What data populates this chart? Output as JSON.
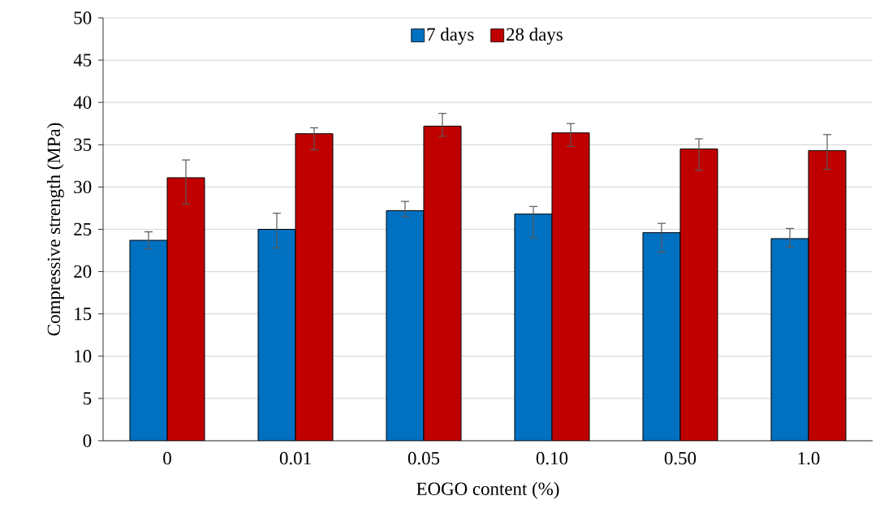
{
  "chart_data": {
    "type": "bar",
    "xlabel": "EOGO content (%)",
    "ylabel": "Compressive strength (MPa)",
    "categories": [
      "0",
      "0.01",
      "0.05",
      "0.10",
      "0.50",
      "1.0"
    ],
    "series": [
      {
        "name": "7 days",
        "color": "#0070c0",
        "values": [
          23.7,
          25.0,
          27.2,
          26.8,
          24.6,
          23.9
        ],
        "errors": [
          [
            22.7,
            24.7
          ],
          [
            22.8,
            26.9
          ],
          [
            26.5,
            28.3
          ],
          [
            24.0,
            27.7
          ],
          [
            22.3,
            25.7
          ],
          [
            22.9,
            25.1
          ]
        ]
      },
      {
        "name": "28 days",
        "color": "#c00000",
        "values": [
          31.1,
          36.3,
          37.2,
          36.4,
          34.5,
          34.3
        ],
        "errors": [
          [
            28.0,
            33.2
          ],
          [
            34.4,
            37.0
          ],
          [
            36.0,
            38.7
          ],
          [
            34.8,
            37.5
          ],
          [
            32.0,
            35.7
          ],
          [
            32.1,
            36.2
          ]
        ]
      }
    ],
    "ylim": [
      0,
      50
    ],
    "yticks": [
      0,
      5,
      10,
      15,
      20,
      25,
      30,
      35,
      40,
      45,
      50
    ],
    "grid": "y",
    "legend": "top"
  }
}
